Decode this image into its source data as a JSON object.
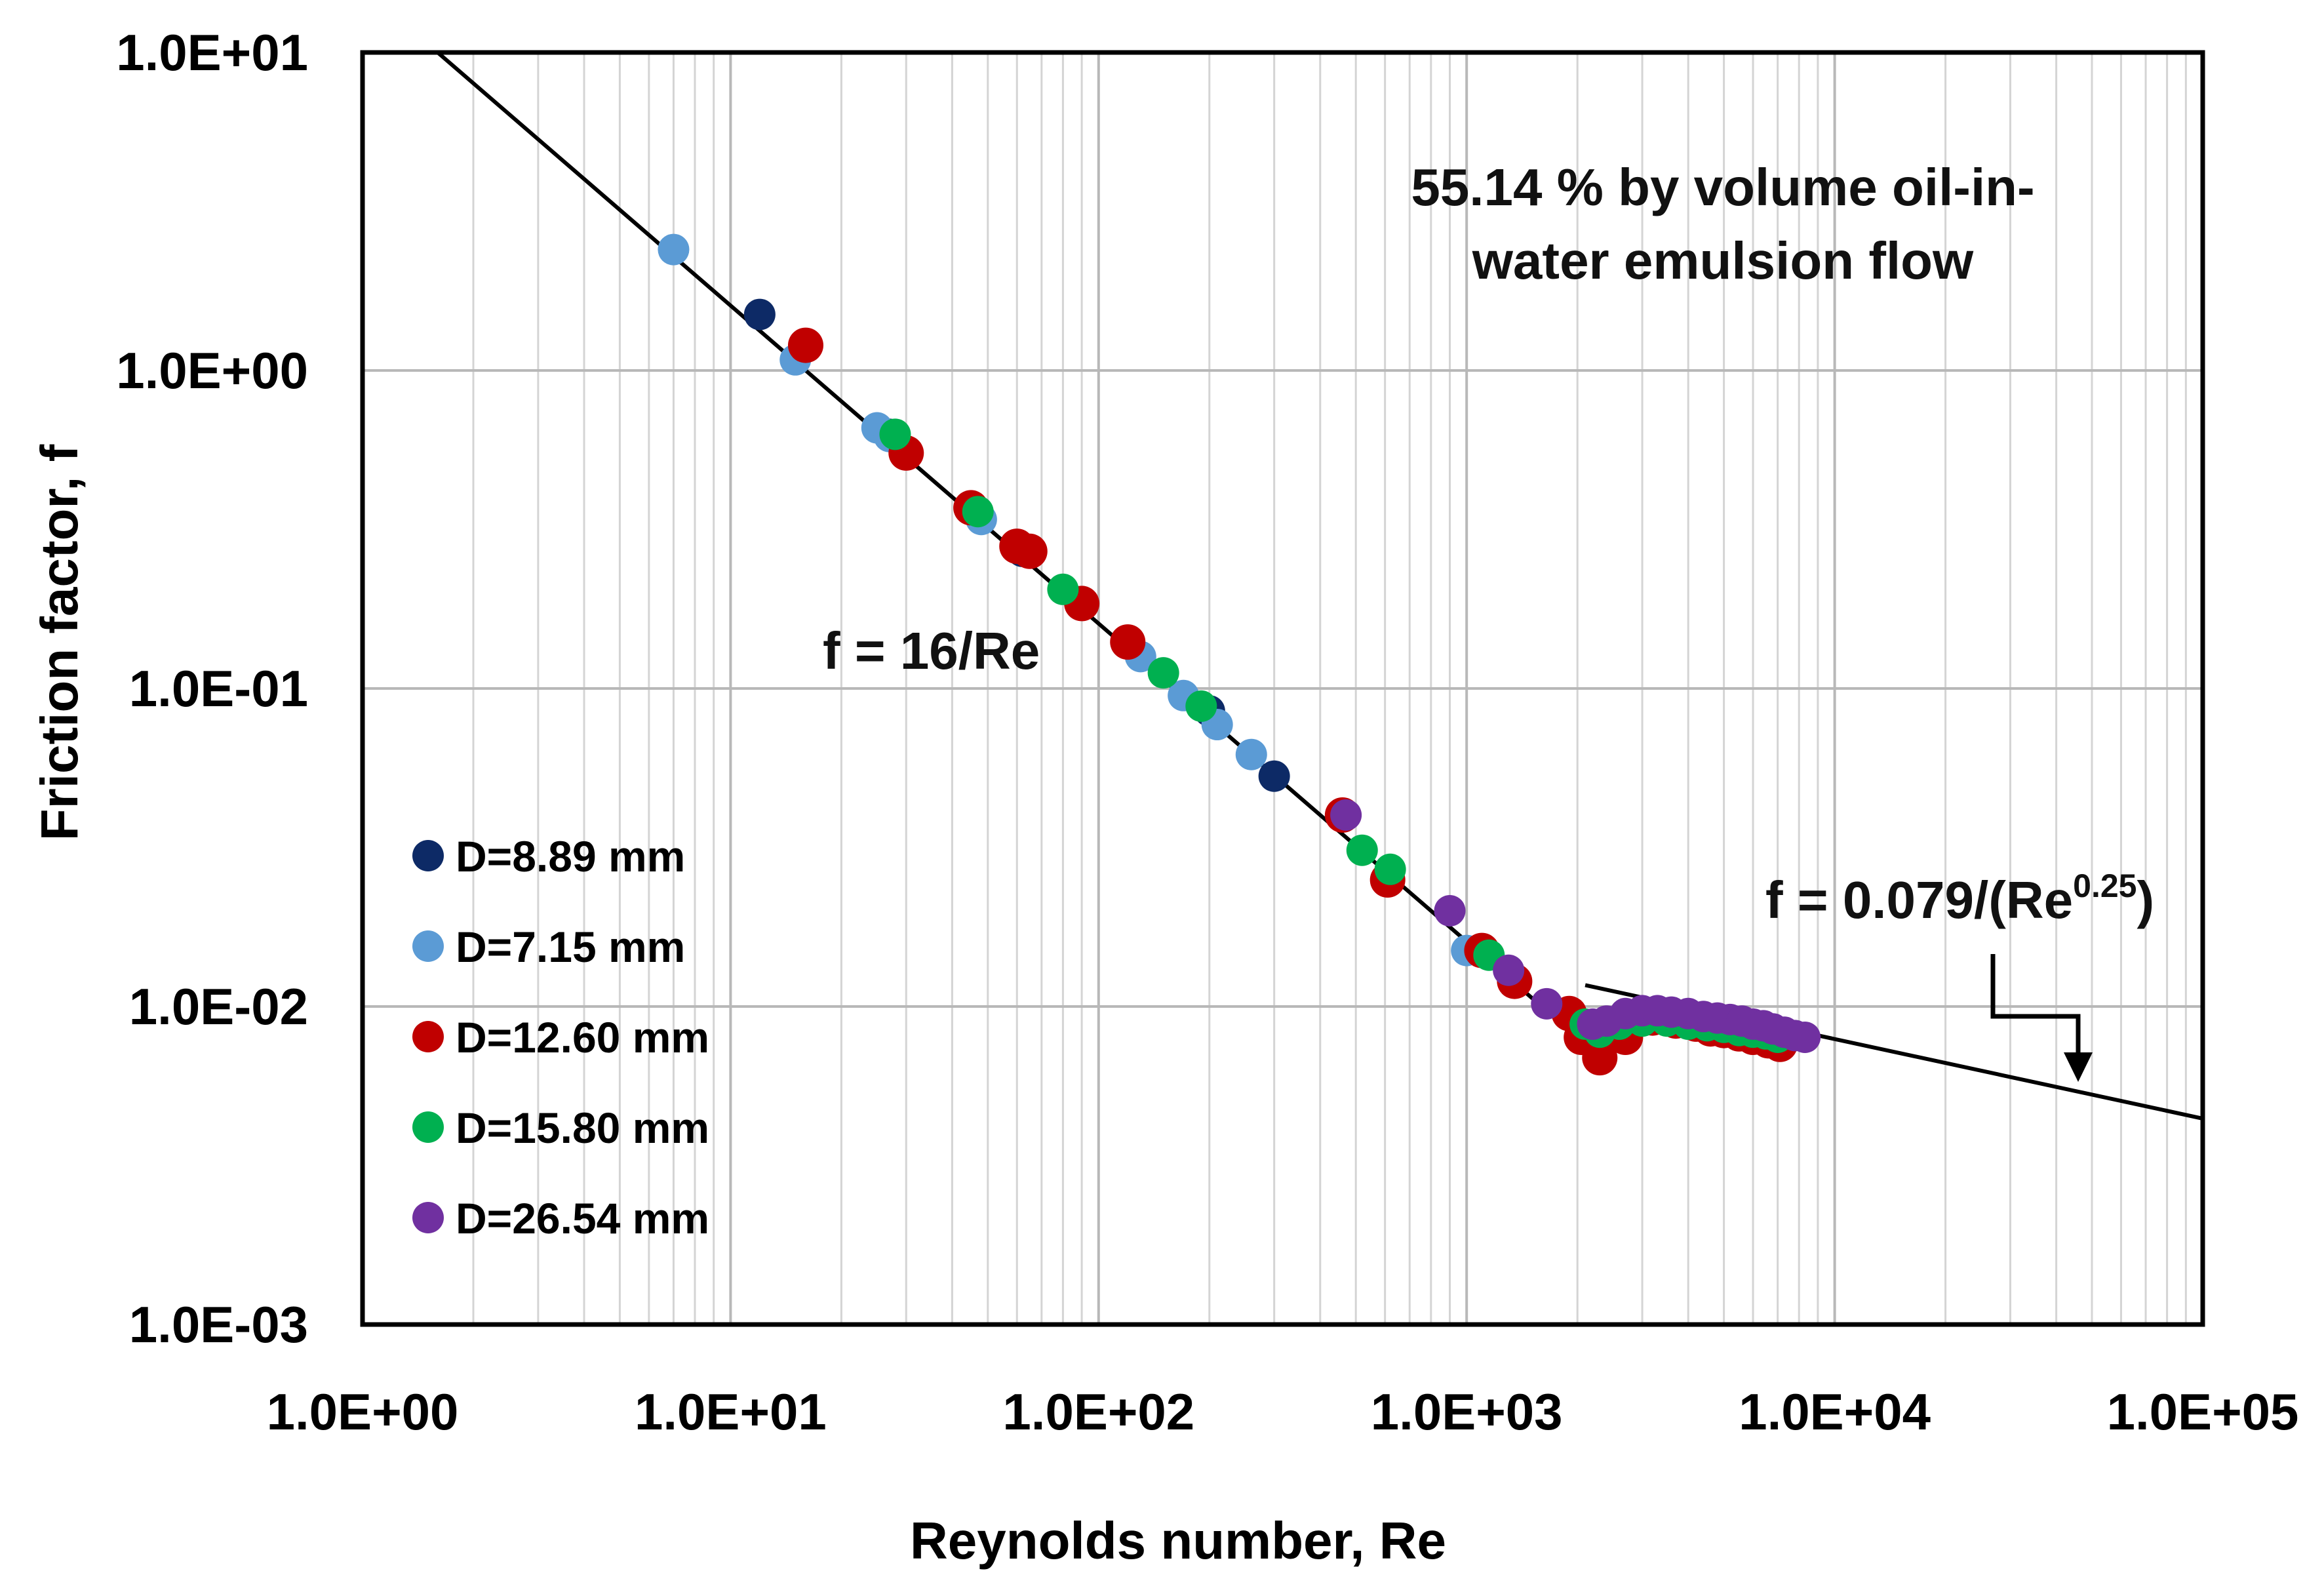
{
  "chart_data": {
    "type": "scatter",
    "xscale": "log",
    "yscale": "log",
    "xlim": [
      1,
      100000
    ],
    "ylim": [
      0.001,
      10
    ],
    "xlabel": "Reynolds number, Re",
    "ylabel": "Friction factor, f",
    "xtick_labels": [
      "1.0E+00",
      "1.0E+01",
      "1.0E+02",
      "1.0E+03",
      "1.0E+04",
      "1.0E+05"
    ],
    "ytick_labels": [
      "1.0E+01",
      "1.0E+00",
      "1.0E-01",
      "1.0E-02",
      "1.0E-03"
    ],
    "grid": true,
    "title_annotation": [
      "55.14 % by volume oil-in-",
      "water emulsion flow"
    ],
    "laminar_label": "f = 16/Re",
    "turbulent_label": {
      "prefix": "f = 0.079/(Re",
      "exponent": "0.25",
      "suffix": ")"
    },
    "lines": [
      {
        "name": "laminar",
        "equation": "f = 16/Re",
        "x_range": [
          1.6,
          2100
        ]
      },
      {
        "name": "turbulent",
        "equation": "f = 0.079/Re^0.25",
        "x_range": [
          2100,
          100000
        ]
      }
    ],
    "legend_position": "left-middle",
    "series": [
      {
        "name": "D=8.89 mm",
        "color": "#0d2a66",
        "x": [
          12,
          27,
          62,
          200,
          300,
          1100
        ],
        "y": [
          1.5,
          0.63,
          0.27,
          0.085,
          0.053,
          0.015
        ]
      },
      {
        "name": "D=7.15 mm",
        "color": "#5b9bd5",
        "x": [
          7,
          15,
          25,
          27,
          48,
          130,
          170,
          210,
          260,
          1000
        ],
        "y": [
          2.4,
          1.08,
          0.66,
          0.62,
          0.34,
          0.126,
          0.095,
          0.077,
          0.062,
          0.015
        ]
      },
      {
        "name": "D=12.60 mm",
        "color": "#c00000",
        "x": [
          16,
          30,
          45,
          60,
          65,
          90,
          120,
          460,
          610,
          1100,
          1350,
          1900,
          2050,
          2300,
          2700,
          3200,
          3700,
          4200,
          4600,
          5000,
          5500,
          6000,
          6600,
          7100
        ],
        "y": [
          1.2,
          0.55,
          0.37,
          0.28,
          0.27,
          0.185,
          0.14,
          0.04,
          0.025,
          0.015,
          0.012,
          0.0095,
          0.008,
          0.0069,
          0.008,
          0.0092,
          0.009,
          0.0088,
          0.0085,
          0.0084,
          0.0082,
          0.008,
          0.0078,
          0.0076
        ]
      },
      {
        "name": "D=15.80 mm",
        "color": "#00b050",
        "x": [
          28,
          47,
          80,
          150,
          190,
          520,
          620,
          1150,
          2100,
          2300,
          2600,
          3000,
          3500,
          4000,
          4500,
          5000,
          5500,
          6000,
          6500,
          7000
        ],
        "y": [
          0.63,
          0.36,
          0.205,
          0.112,
          0.088,
          0.031,
          0.027,
          0.0145,
          0.0088,
          0.0083,
          0.0088,
          0.009,
          0.009,
          0.0088,
          0.0087,
          0.0086,
          0.0084,
          0.0083,
          0.0082,
          0.008
        ]
      },
      {
        "name": "D=26.54 mm",
        "color": "#7030a0",
        "x": [
          470,
          900,
          1300,
          1650,
          2200,
          2400,
          2700,
          3000,
          3300,
          3600,
          4000,
          4400,
          4800,
          5200,
          5600,
          6000,
          6400,
          6800,
          7300,
          7800,
          8300
        ],
        "y": [
          0.04,
          0.02,
          0.013,
          0.0102,
          0.0088,
          0.009,
          0.0095,
          0.0097,
          0.0097,
          0.0096,
          0.0095,
          0.0093,
          0.0092,
          0.0091,
          0.009,
          0.0088,
          0.0087,
          0.0085,
          0.0083,
          0.0081,
          0.008
        ]
      }
    ]
  }
}
